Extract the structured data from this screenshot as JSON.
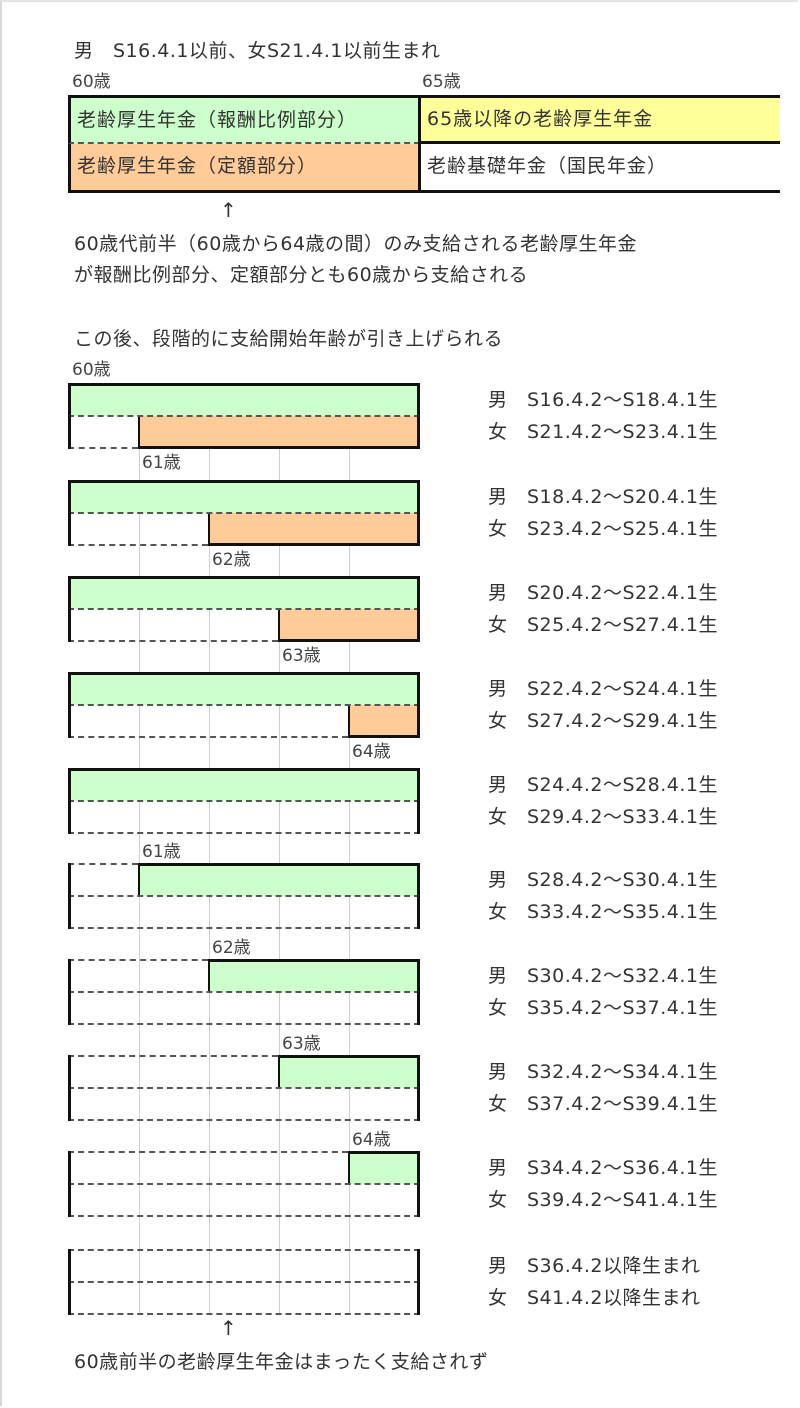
{
  "colors": {
    "reward_portion": "#ccffcc",
    "fixed_portion": "#ffcc99",
    "after65": "#ffff99",
    "basic": "#ffffff",
    "border": "#111111"
  },
  "top_section": {
    "heading": "男　S16.4.1以前、女S21.4.1以前生まれ",
    "age_start": "60歳",
    "age_65": "65歳",
    "cells": {
      "reward_portion": "老齢厚生年金（報酬比例部分）",
      "after65": "65歳以降の老齢厚生年金",
      "fixed_portion": "老齢厚生年金（定額部分）",
      "basic": "老齢基礎年金（国民年金）"
    },
    "arrow": "↑",
    "note_line1": "60歳代前半（60歳から64歳の間）のみ支給される老齢厚生年金",
    "note_line2": "が報酬比例部分、定額部分とも60歳から支給される"
  },
  "middle_heading": "この後、段階的に支給開始年齢が引き上げられる",
  "chart_start_label": "60歳",
  "footer": {
    "arrow": "↑",
    "note": "60歳前半の老齢厚生年金はまったく支給されず"
  },
  "chart_data": {
    "type": "table",
    "title": "この後、段階的に支給開始年齢が引き上げられる",
    "x_axis": {
      "start": 60,
      "end": 65,
      "ticks": [
        60,
        61,
        62,
        63,
        64,
        65
      ],
      "unit": "歳"
    },
    "series_legend": [
      {
        "name": "老齢厚生年金（報酬比例部分）",
        "color": "#ccffcc"
      },
      {
        "name": "老齢厚生年金（定額部分）",
        "color": "#ffcc99"
      }
    ],
    "rows": [
      {
        "label": "",
        "reward_start": 60,
        "fixed_start": 61,
        "men": "男　S16.4.2～S18.4.1生",
        "women": "女　S21.4.2～S23.4.1生",
        "below_label": "61歳"
      },
      {
        "label": "",
        "reward_start": 60,
        "fixed_start": 62,
        "men": "男　S18.4.2～S20.4.1生",
        "women": "女　S23.4.2～S25.4.1生",
        "below_label": "62歳"
      },
      {
        "label": "",
        "reward_start": 60,
        "fixed_start": 63,
        "men": "男　S20.4.2～S22.4.1生",
        "women": "女　S25.4.2～S27.4.1生",
        "below_label": "63歳"
      },
      {
        "label": "",
        "reward_start": 60,
        "fixed_start": 64,
        "men": "男　S22.4.2～S24.4.1生",
        "women": "女　S27.4.2～S29.4.1生",
        "below_label": "64歳"
      },
      {
        "label": "",
        "reward_start": 60,
        "fixed_start": null,
        "men": "男　S24.4.2～S28.4.1生",
        "women": "女　S29.4.2～S33.4.1生",
        "below_label": ""
      },
      {
        "label": "61歳",
        "reward_start": 61,
        "fixed_start": null,
        "men": "男　S28.4.2～S30.4.1生",
        "women": "女　S33.4.2～S35.4.1生",
        "below_label": ""
      },
      {
        "label": "62歳",
        "reward_start": 62,
        "fixed_start": null,
        "men": "男　S30.4.2～S32.4.1生",
        "women": "女　S35.4.2～S37.4.1生",
        "below_label": ""
      },
      {
        "label": "63歳",
        "reward_start": 63,
        "fixed_start": null,
        "men": "男　S32.4.2～S34.4.1生",
        "women": "女　S37.4.2～S39.4.1生",
        "below_label": ""
      },
      {
        "label": "64歳",
        "reward_start": 64,
        "fixed_start": null,
        "men": "男　S34.4.2～S36.4.1生",
        "women": "女　S39.4.2～S41.4.1生",
        "below_label": ""
      },
      {
        "label": "",
        "reward_start": null,
        "fixed_start": null,
        "men": "男　S36.4.2以降生まれ",
        "women": "女　S41.4.2以降生まれ",
        "below_label": ""
      }
    ]
  }
}
